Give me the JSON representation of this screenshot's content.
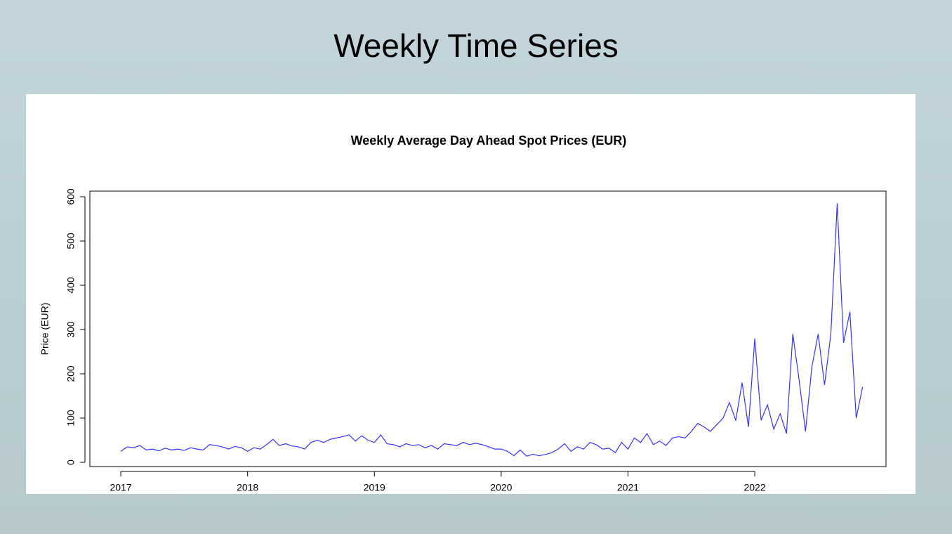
{
  "slide_title": "Weekly Time Series",
  "chart_data": {
    "type": "line",
    "title": "Weekly Average Day Ahead Spot Prices (EUR)",
    "ylabel": "Price (EUR)",
    "xlim": [
      2016.756,
      2023.035
    ],
    "xticks": [
      2017,
      2018,
      2019,
      2020,
      2021,
      2022
    ],
    "ylim": [
      -9.5,
      612.7
    ],
    "yticks": [
      0,
      100,
      200,
      300,
      400,
      500,
      600
    ],
    "grid": false,
    "series": [
      {
        "name": "Price",
        "color": "#3333ff",
        "x": [
          2017.0,
          2017.05,
          2017.1,
          2017.15,
          2017.2,
          2017.25,
          2017.3,
          2017.35,
          2017.4,
          2017.45,
          2017.5,
          2017.55,
          2017.6,
          2017.65,
          2017.7,
          2017.75,
          2017.8,
          2017.85,
          2017.9,
          2017.95,
          2018.0,
          2018.05,
          2018.1,
          2018.15,
          2018.2,
          2018.25,
          2018.3,
          2018.35,
          2018.4,
          2018.45,
          2018.5,
          2018.55,
          2018.6,
          2018.65,
          2018.7,
          2018.75,
          2018.8,
          2018.85,
          2018.9,
          2018.95,
          2019.0,
          2019.05,
          2019.1,
          2019.15,
          2019.2,
          2019.25,
          2019.3,
          2019.35,
          2019.4,
          2019.45,
          2019.5,
          2019.55,
          2019.6,
          2019.65,
          2019.7,
          2019.75,
          2019.8,
          2019.85,
          2019.9,
          2019.95,
          2020.0,
          2020.05,
          2020.1,
          2020.15,
          2020.2,
          2020.25,
          2020.3,
          2020.35,
          2020.4,
          2020.45,
          2020.5,
          2020.55,
          2020.6,
          2020.65,
          2020.7,
          2020.75,
          2020.8,
          2020.85,
          2020.9,
          2020.95,
          2021.0,
          2021.05,
          2021.1,
          2021.15,
          2021.2,
          2021.25,
          2021.3,
          2021.35,
          2021.4,
          2021.45,
          2021.5,
          2021.55,
          2021.6,
          2021.65,
          2021.7,
          2021.75,
          2021.8,
          2021.85,
          2021.9,
          2021.95,
          2022.0,
          2022.05,
          2022.1,
          2022.15,
          2022.2,
          2022.25,
          2022.3,
          2022.35,
          2022.4,
          2022.45,
          2022.5,
          2022.55,
          2022.6,
          2022.65,
          2022.7,
          2022.75,
          2022.8,
          2022.85
        ],
        "values": [
          25,
          35,
          33,
          38,
          28,
          30,
          26,
          32,
          28,
          30,
          27,
          33,
          30,
          28,
          40,
          38,
          35,
          30,
          36,
          33,
          25,
          33,
          30,
          40,
          52,
          38,
          42,
          37,
          35,
          30,
          45,
          50,
          45,
          52,
          55,
          58,
          62,
          48,
          60,
          50,
          45,
          62,
          42,
          40,
          35,
          42,
          38,
          40,
          33,
          38,
          30,
          42,
          40,
          38,
          45,
          40,
          43,
          40,
          35,
          30,
          30,
          25,
          15,
          28,
          14,
          18,
          15,
          18,
          22,
          30,
          42,
          25,
          35,
          30,
          45,
          40,
          30,
          32,
          22,
          45,
          30,
          55,
          45,
          65,
          40,
          48,
          38,
          55,
          58,
          55,
          70,
          88,
          80,
          70,
          85,
          100,
          135,
          95,
          180,
          80,
          280,
          95,
          130,
          75,
          110,
          65,
          290,
          185,
          70,
          215,
          290,
          175,
          290,
          585,
          270,
          340,
          100,
          170
        ]
      }
    ]
  }
}
